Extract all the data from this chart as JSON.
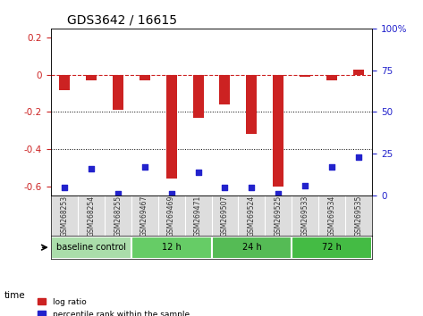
{
  "title": "GDS3642 / 16615",
  "samples": [
    "GSM268253",
    "GSM268254",
    "GSM268255",
    "GSM269467",
    "GSM269469",
    "GSM269471",
    "GSM269507",
    "GSM269524",
    "GSM269525",
    "GSM269533",
    "GSM269534",
    "GSM269535"
  ],
  "log_ratio": [
    -0.08,
    -0.03,
    -0.19,
    -0.03,
    -0.56,
    -0.23,
    -0.16,
    -0.32,
    -0.6,
    -0.01,
    -0.03,
    0.03
  ],
  "percentile_rank": [
    5,
    16,
    1,
    17,
    1,
    14,
    5,
    5,
    1,
    6,
    17,
    23
  ],
  "groups": [
    {
      "label": "baseline control",
      "start": 0,
      "end": 3,
      "color": "#aaddaa"
    },
    {
      "label": "12 h",
      "start": 3,
      "end": 6,
      "color": "#66cc66"
    },
    {
      "label": "24 h",
      "start": 6,
      "end": 9,
      "color": "#55bb55"
    },
    {
      "label": "72 h",
      "start": 9,
      "end": 12,
      "color": "#44bb44"
    }
  ],
  "ylim_left": [
    -0.65,
    0.25
  ],
  "ylim_right": [
    0,
    100
  ],
  "yticks_left": [
    0.2,
    0.0,
    -0.2,
    -0.4,
    -0.6
  ],
  "yticks_right": [
    100,
    75,
    50,
    25,
    0
  ],
  "bar_color": "#cc2222",
  "dot_color": "#2222cc",
  "zero_line_color": "#cc2222",
  "grid_color": "#aaaaaa",
  "background_color": "#ffffff",
  "plot_bg": "#ffffff"
}
